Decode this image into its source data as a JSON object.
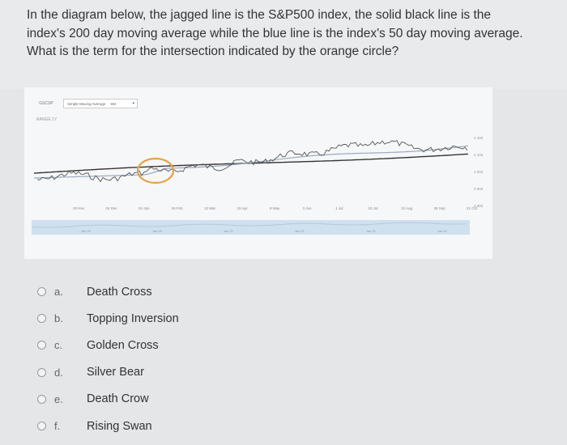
{
  "question": {
    "text": "In the diagram below, the jagged line is the S&P500 index, the solid black line is the index's 200 day moving average while the blue line is the index's 50 day moving average. What is the term for the intersection indicated by the orange circle?"
  },
  "chart_toolbar": {
    "symbol": "GSCSP",
    "indicator": "Simple Moving Average",
    "period": "SM",
    "sub_label": "RANGE 1Y"
  },
  "chart_colors": {
    "index_line": "#555555",
    "ma200_line": "#333333",
    "ma50_line": "#9aa8c2",
    "highlight_circle": "#e8a14a",
    "navigator_fill": "#cfe0ef"
  },
  "x_axis_labels": [
    "20 Nov",
    "04 Dec",
    "04 Jan",
    "18 Feb",
    "12 Mar",
    "15 Apr",
    "8 May",
    "3 Jun",
    "1 Jul",
    "15 Jul",
    "12 Aug",
    "28 Sep",
    "21 Oct"
  ],
  "y_axis_labels": [
    "4 200",
    "4 100",
    "4 000",
    "3 900",
    "3 800"
  ],
  "navigator_labels": [
    "Jan 20",
    "Jan 20",
    "Jan 21",
    "Jan 21",
    "Jan 21",
    "Jan 21"
  ],
  "options": [
    {
      "letter": "a.",
      "text": "Death Cross"
    },
    {
      "letter": "b.",
      "text": "Topping Inversion"
    },
    {
      "letter": "c.",
      "text": "Golden Cross"
    },
    {
      "letter": "d.",
      "text": "Silver Bear"
    },
    {
      "letter": "e.",
      "text": "Death Crow"
    },
    {
      "letter": "f.",
      "text": "Rising Swan"
    }
  ]
}
